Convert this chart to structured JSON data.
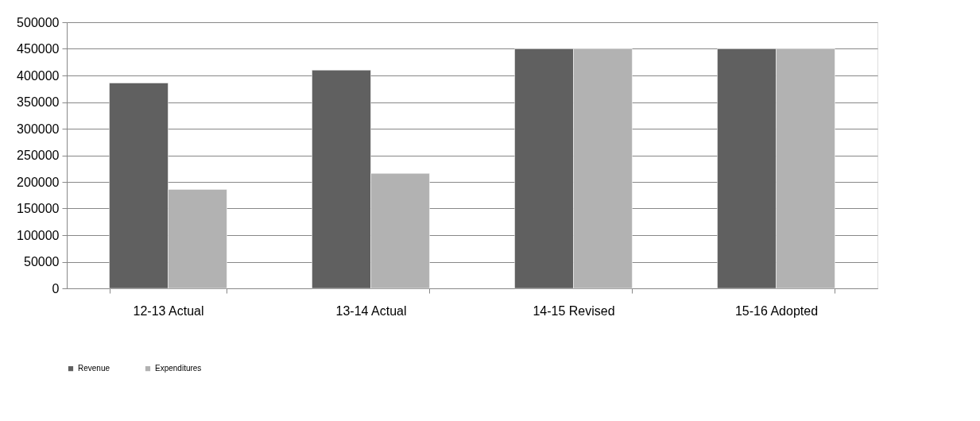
{
  "chart_data": {
    "type": "bar",
    "categories": [
      "12-13 Actual",
      "13-14 Actual",
      "14-15 Revised",
      "15-16 Adopted"
    ],
    "series": [
      {
        "name": "Revenue",
        "color": "#606060",
        "values": [
          386000,
          410000,
          450000,
          450000
        ]
      },
      {
        "name": "Expenditures",
        "color": "#b2b2b2",
        "values": [
          186000,
          216000,
          450000,
          450000
        ]
      }
    ],
    "ylim": [
      0,
      500000
    ],
    "yticks": [
      0,
      50000,
      100000,
      150000,
      200000,
      250000,
      300000,
      350000,
      400000,
      450000,
      500000
    ],
    "grid": "y",
    "legend": "bottom"
  }
}
